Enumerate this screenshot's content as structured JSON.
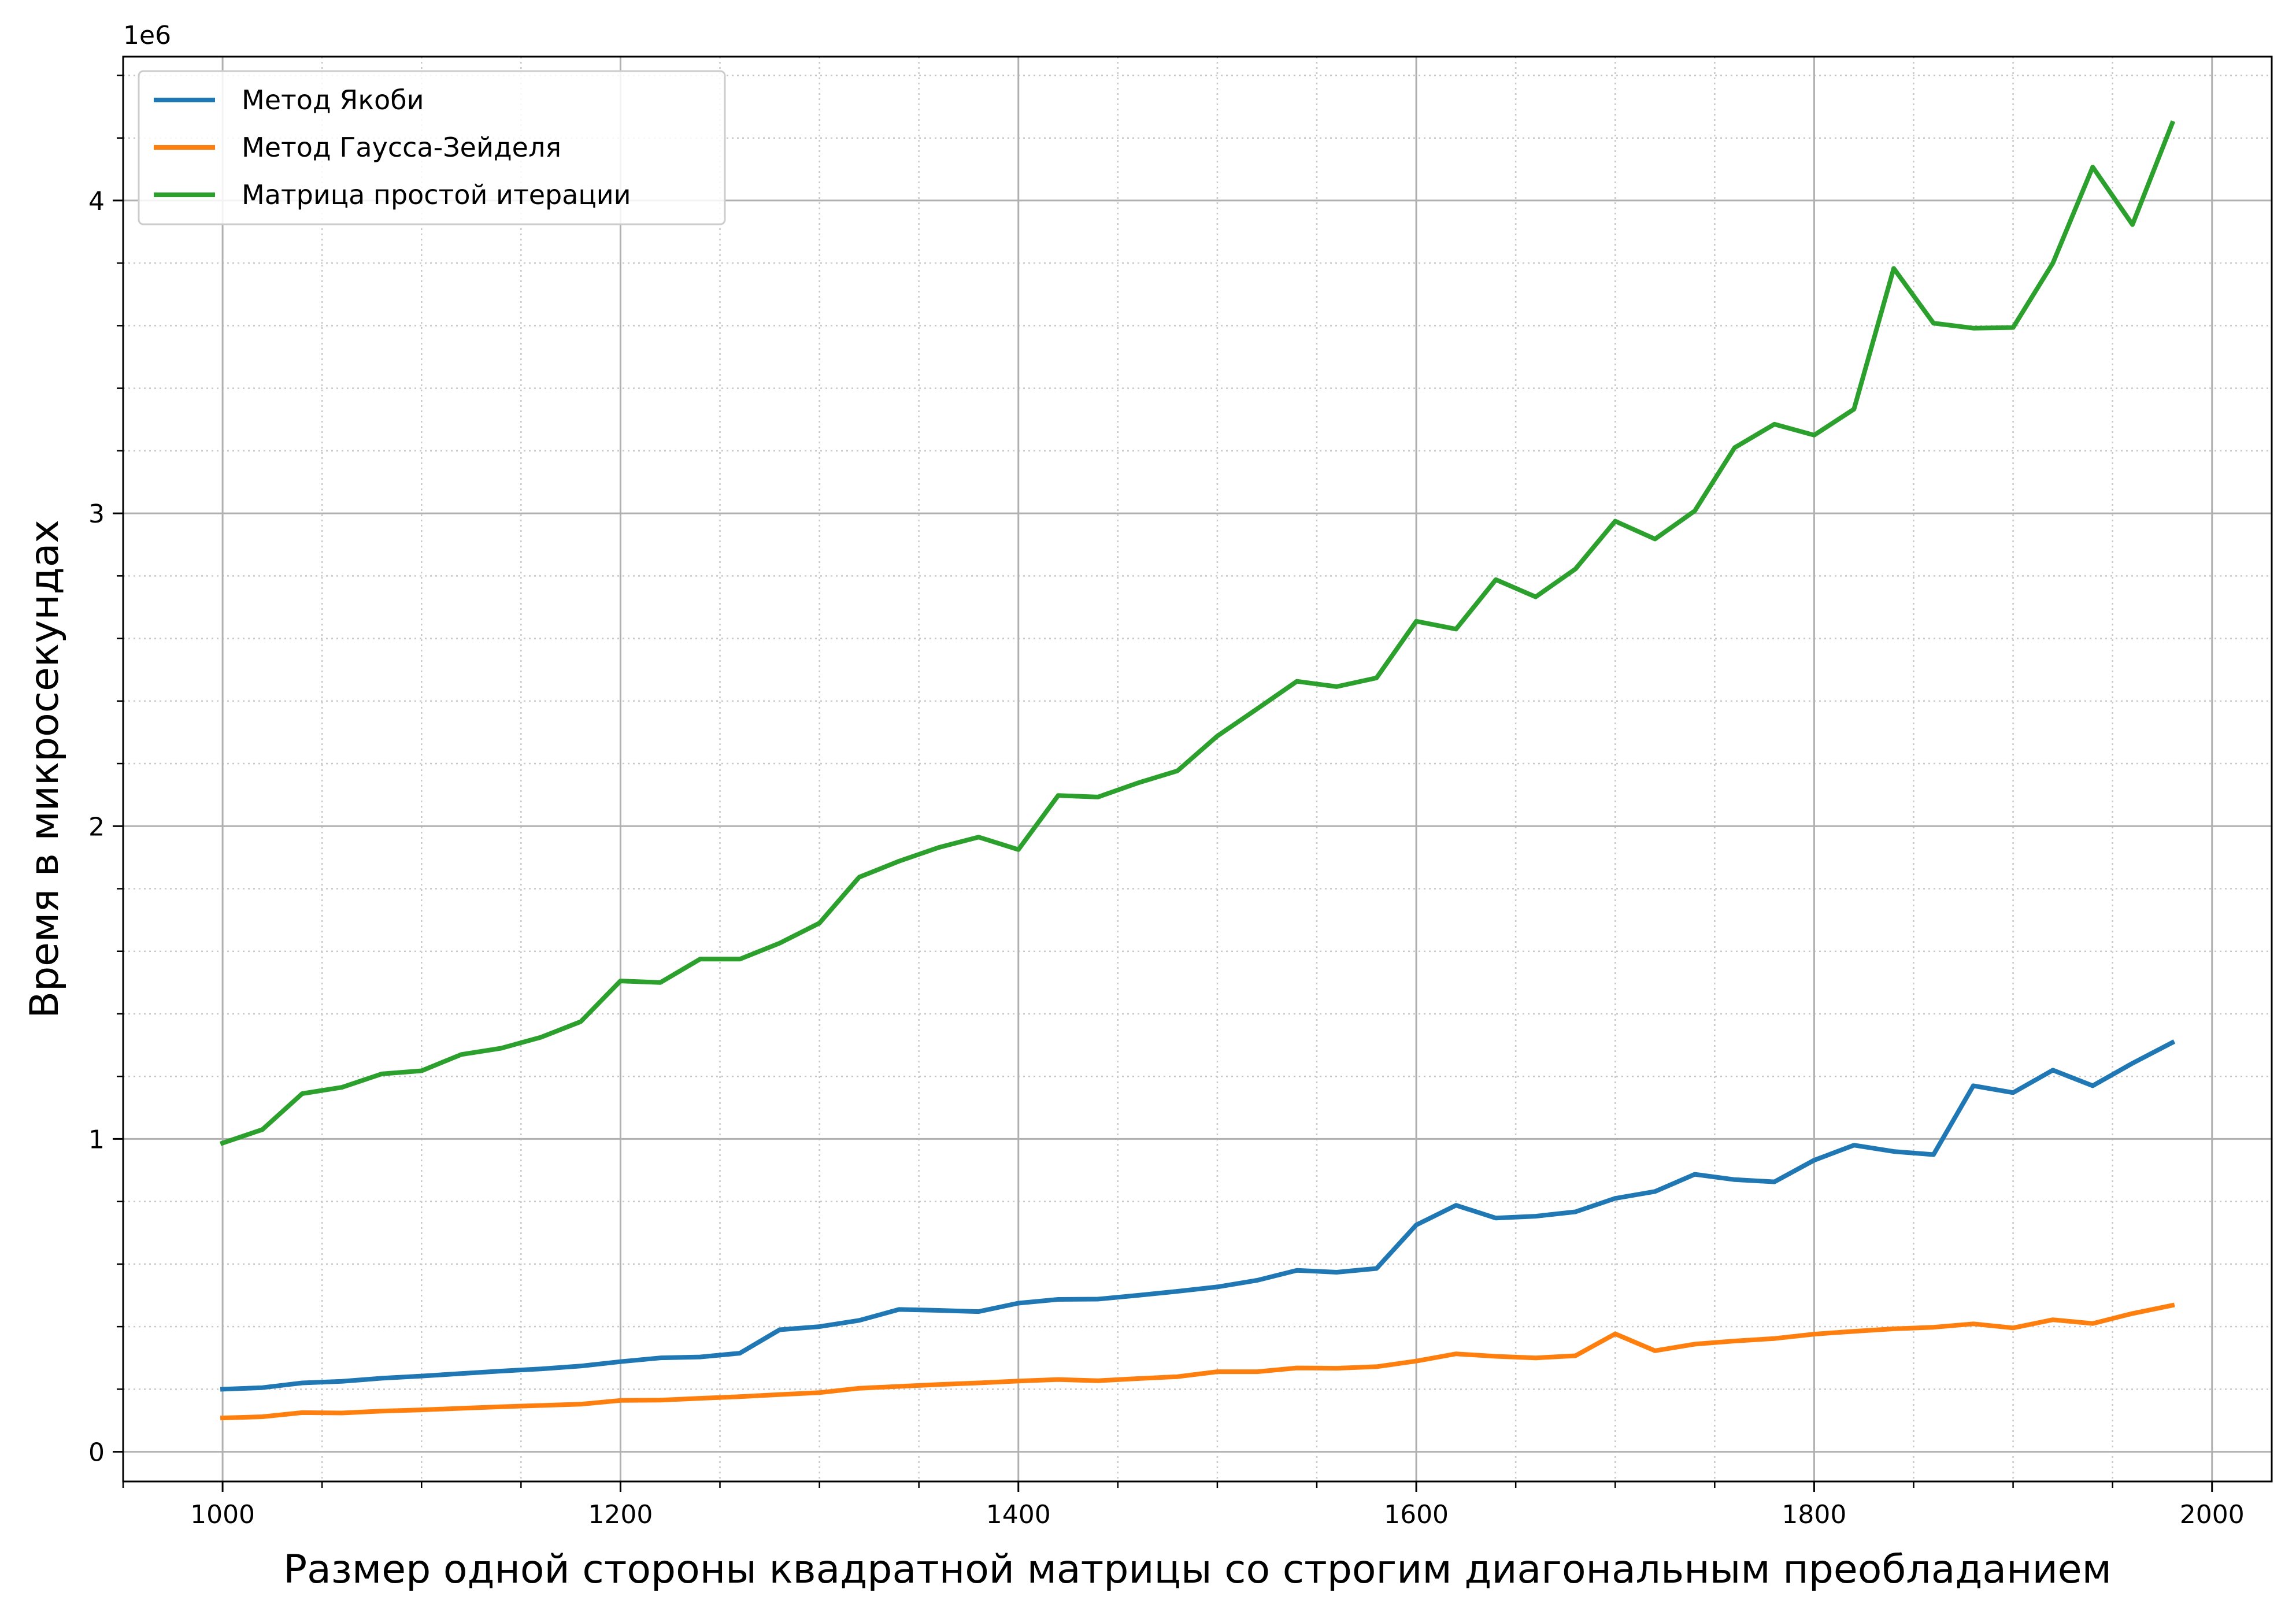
{
  "chart_data": {
    "type": "line",
    "title": "",
    "xlabel": "Размер одной стороны квадратной матрицы со строгим диагональным преобладанием",
    "ylabel": "Время в микросекундах",
    "y_offset_label": "1e6",
    "xlim": [
      950,
      2030
    ],
    "ylim": [
      -95000,
      4460000
    ],
    "x_major_ticks": [
      1000,
      1200,
      1400,
      1600,
      1800,
      2000
    ],
    "x_tick_labels": [
      "1000",
      "1200",
      "1400",
      "1600",
      "1800",
      "2000"
    ],
    "x_minor_step": 50,
    "y_major_ticks": [
      0,
      1000000,
      2000000,
      3000000,
      4000000
    ],
    "y_tick_labels": [
      "0",
      "1",
      "2",
      "3",
      "4"
    ],
    "y_minor_step": 200000,
    "grid": "major solid, minor dotted",
    "legend_position": "top-left",
    "x": [
      1000,
      1020,
      1040,
      1060,
      1080,
      1100,
      1120,
      1140,
      1160,
      1180,
      1200,
      1220,
      1240,
      1260,
      1280,
      1300,
      1320,
      1340,
      1360,
      1380,
      1400,
      1420,
      1440,
      1460,
      1480,
      1500,
      1520,
      1540,
      1560,
      1580,
      1600,
      1620,
      1640,
      1660,
      1680,
      1700,
      1720,
      1740,
      1760,
      1780,
      1800,
      1820,
      1840,
      1860,
      1880,
      1900,
      1920,
      1940,
      1960,
      1980
    ],
    "series": [
      {
        "name": "Метод Якоби",
        "color": "#1f77b4",
        "values": [
          200000,
          205000,
          220000,
          225000,
          235000,
          242000,
          250000,
          258000,
          265000,
          274000,
          288000,
          300000,
          303000,
          315000,
          390000,
          400000,
          420000,
          455000,
          452000,
          448000,
          475000,
          487000,
          488000,
          500000,
          513000,
          527000,
          548000,
          580000,
          574000,
          586000,
          725000,
          788000,
          747000,
          753000,
          767000,
          810000,
          832000,
          887000,
          870000,
          863000,
          932000,
          980000,
          960000,
          950000,
          1170000,
          1148000,
          1220000,
          1170000,
          1242000,
          1308000
        ]
      },
      {
        "name": "Метод Гаусса-Зейделя",
        "color": "#ff7f0e",
        "values": [
          108000,
          112000,
          125000,
          124000,
          130000,
          134000,
          139000,
          144000,
          148000,
          152000,
          164000,
          165000,
          171000,
          176000,
          183000,
          189000,
          203000,
          209000,
          215000,
          220000,
          226000,
          231000,
          227000,
          234000,
          240000,
          256000,
          256000,
          268000,
          267000,
          272000,
          290000,
          313000,
          305000,
          300000,
          307000,
          377000,
          323000,
          344000,
          354000,
          362000,
          376000,
          385000,
          393000,
          398000,
          409000,
          396000,
          422000,
          410000,
          442000,
          468000
        ]
      },
      {
        "name": "Матрица простой итерации",
        "color": "#2ca02c",
        "values": [
          987000,
          1030000,
          1145000,
          1165000,
          1208000,
          1218000,
          1270000,
          1290000,
          1325000,
          1375000,
          1505000,
          1500000,
          1575000,
          1575000,
          1626000,
          1690000,
          1837000,
          1888000,
          1932000,
          1965000,
          1925000,
          2098000,
          2093000,
          2138000,
          2177000,
          2288000,
          2375000,
          2463000,
          2446000,
          2474000,
          2655000,
          2630000,
          2788000,
          2733000,
          2822000,
          2975000,
          2918000,
          3008000,
          3210000,
          3285000,
          3250000,
          3333000,
          3783000,
          3608000,
          3592000,
          3594000,
          3800000,
          4107000,
          3923000,
          4247000
        ]
      }
    ]
  }
}
